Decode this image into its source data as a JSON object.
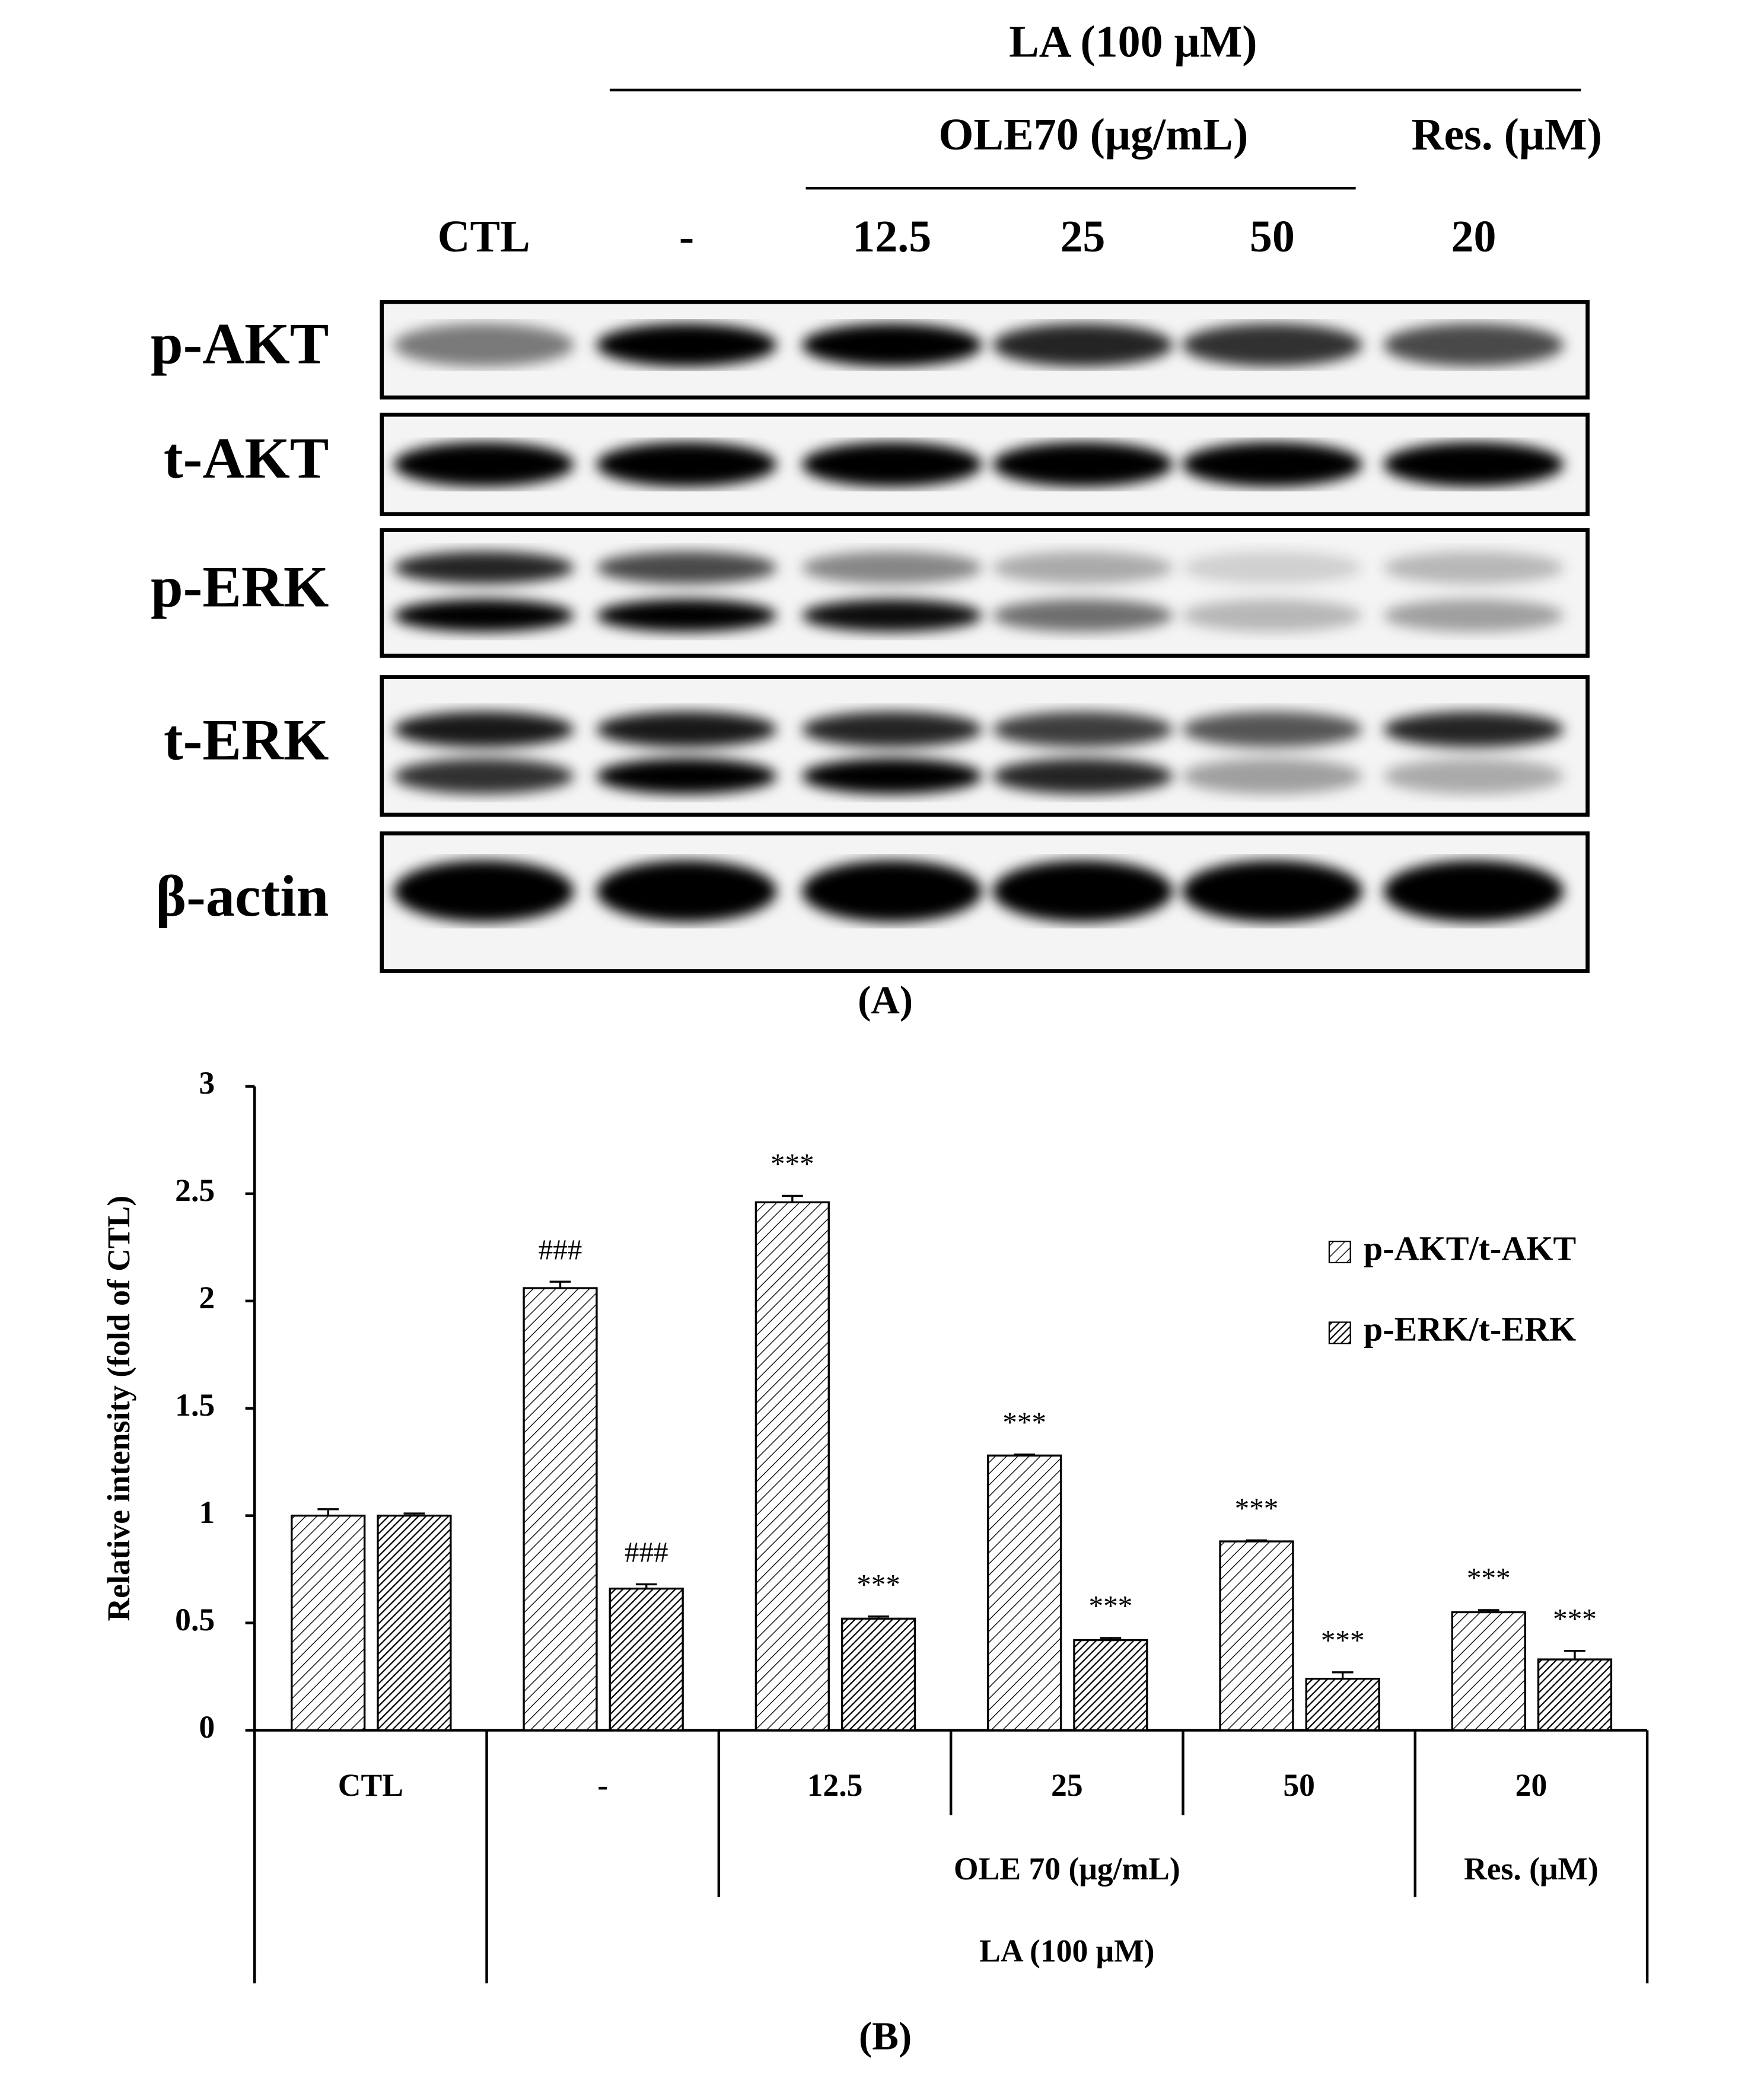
{
  "panel_a": {
    "header": {
      "la": "LA (100 μM)",
      "ole": "OLE70  (μg/mL)",
      "res": "Res. (μM)"
    },
    "lanes": [
      "CTL",
      "-",
      "12.5",
      "25",
      "50",
      "20"
    ],
    "rows": [
      "p-AKT",
      "t-AKT",
      "p-ERK",
      "t-ERK",
      "β-actin"
    ],
    "caption": "(A)"
  },
  "chart_data": {
    "type": "bar",
    "y_label": "Relative intensity (fold of CTL)",
    "categories": [
      "CTL",
      "-",
      "12.5",
      "25",
      "50",
      "20"
    ],
    "groups": [
      {
        "label": "OLE 70 (μg/mL)"
      },
      {
        "label": "Res. (μM)"
      },
      {
        "label": "LA (100 μM)"
      }
    ],
    "series": [
      {
        "name": "p-AKT/t-AKT",
        "color": "#000000",
        "values": [
          1.0,
          2.06,
          2.46,
          1.28,
          0.88,
          0.55
        ],
        "errors": [
          0.03,
          0.03,
          0.03,
          0.005,
          0.005,
          0.01
        ],
        "annotations": [
          null,
          "###",
          "***",
          "***",
          "***",
          "***"
        ]
      },
      {
        "name": "p-ERK/t-ERK",
        "color": "#000000",
        "values": [
          1.0,
          0.66,
          0.52,
          0.42,
          0.24,
          0.33
        ],
        "errors": [
          0.01,
          0.02,
          0.01,
          0.01,
          0.03,
          0.04
        ],
        "annotations": [
          null,
          "###",
          "***",
          "***",
          "***",
          "***"
        ]
      }
    ],
    "ylim": [
      0,
      3
    ],
    "yticks": [
      0,
      0.5,
      1,
      1.5,
      2,
      2.5,
      3
    ],
    "grid": false,
    "legend": "right"
  },
  "caption_b": "(B)"
}
